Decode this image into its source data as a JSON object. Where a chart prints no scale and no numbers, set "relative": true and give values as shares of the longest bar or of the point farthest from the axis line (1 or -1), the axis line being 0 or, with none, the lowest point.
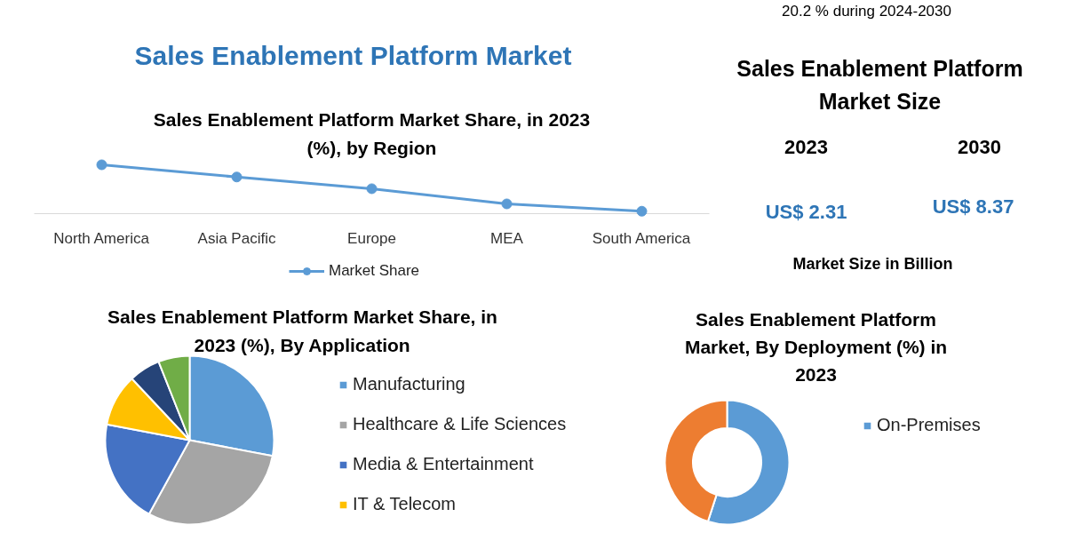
{
  "chart_data": [
    {
      "type": "line",
      "title": "Sales Enablement Platform Market Share, in 2023 (%), by Region",
      "annotations": [
        "Sales Enablement Platform Market"
      ],
      "relative": true,
      "categories": [
        "North America",
        "Asia Pacific",
        "Europe",
        "MEA",
        "South America"
      ],
      "series": [
        {
          "name": "Market Share",
          "color": "#5b9bd5",
          "values": [
            1,
            0.75,
            0.51,
            0.2,
            0.05
          ]
        }
      ],
      "marker": "circle",
      "legend": "bottom"
    },
    {
      "type": "other",
      "title": "Sales Enablement Platform Market Size",
      "annotations": [
        "20.2 % during 2024-2030",
        "2023",
        "2030",
        "US$ 2.31",
        "US$ 8.37",
        "Market Size in Billion"
      ]
    },
    {
      "type": "pie",
      "title": "Sales Enablement Platform Market Share, in 2023 (%), By Application",
      "categories": [
        "Manufacturing",
        "Healthcare & Life Sciences",
        "Media & Entertainment",
        "IT & Telecom",
        null,
        null
      ],
      "values": [
        28,
        30,
        20,
        10,
        6,
        6
      ],
      "colors": [
        "#5b9bd5",
        "#a5a5a5",
        "#4472c4",
        "#ffc000",
        "#264478",
        "#70ad47"
      ],
      "legend": "right"
    },
    {
      "type": "donut",
      "title": "Sales Enablement Platform Market, By Deployment (%) in 2023",
      "categories": [
        "On-Premises",
        null
      ],
      "values": [
        55,
        45
      ],
      "colors": [
        "#5b9bd5",
        "#ed7d31"
      ],
      "legend": "right"
    }
  ]
}
